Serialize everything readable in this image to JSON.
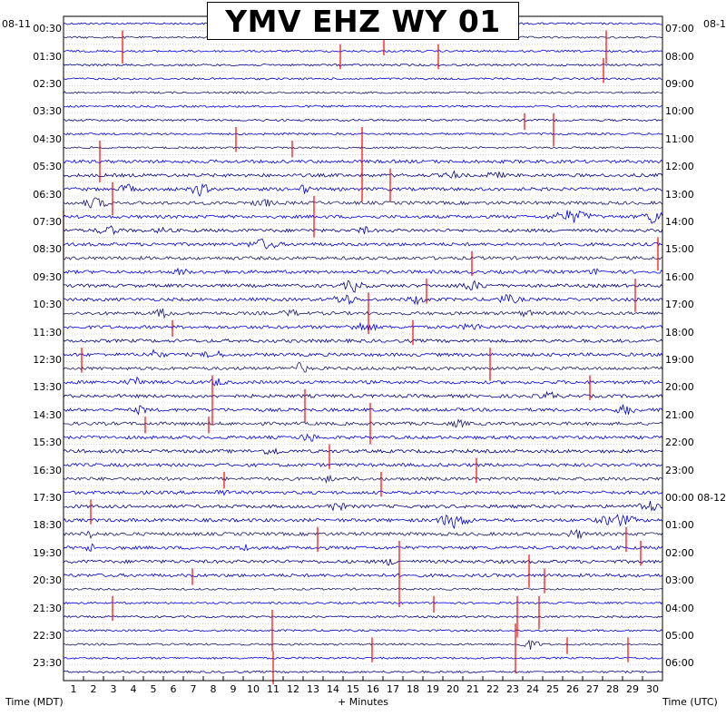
{
  "title": "YMV EHZ WY 01",
  "date_left": "08-11",
  "date_right": "08-1",
  "x_axis": {
    "label": "+ Minutes",
    "ticks": [
      "1",
      "2",
      "3",
      "4",
      "5",
      "6",
      "7",
      "8",
      "9",
      "10",
      "11",
      "12",
      "13",
      "14",
      "15",
      "16",
      "17",
      "18",
      "19",
      "20",
      "21",
      "22",
      "23",
      "24",
      "25",
      "26",
      "27",
      "28",
      "29",
      "30"
    ]
  },
  "left_axis_label": "Time (MDT)",
  "right_axis_label": "Time (UTC)",
  "left_times": [
    "00:30",
    "01:30",
    "02:30",
    "03:30",
    "04:30",
    "05:30",
    "06:30",
    "07:30",
    "08:30",
    "09:30",
    "10:30",
    "11:30",
    "12:30",
    "13:30",
    "14:30",
    "15:30",
    "16:30",
    "17:30",
    "18:30",
    "19:30",
    "20:30",
    "21:30",
    "22:30",
    "23:30"
  ],
  "right_times": [
    "07:00",
    "08:00",
    "09:00",
    "10:00",
    "11:00",
    "12:00",
    "13:00",
    "14:00",
    "15:00",
    "16:00",
    "17:00",
    "18:00",
    "19:00",
    "20:00",
    "21:00",
    "22:00",
    "23:00",
    "00:00 08-12",
    "01:00",
    "02:00",
    "03:00",
    "04:00",
    "05:00",
    "06:00"
  ],
  "colors": {
    "trace_a": "#0000cd",
    "trace_b": "#191970",
    "trace_c": "#0000ff",
    "trace_d": "#00008b",
    "event": "#ff0000",
    "grid": "#b0b0b0"
  },
  "chart_data": {
    "type": "line",
    "description_type": "helicorder",
    "rows": 48,
    "minutes_per_row": 30,
    "xlim": [
      0,
      30
    ],
    "title": "YMV EHZ WY 01",
    "xlabel": "+ Minutes",
    "ylabel_left": "Time (MDT)",
    "ylabel_right": "Time (UTC)"
  }
}
